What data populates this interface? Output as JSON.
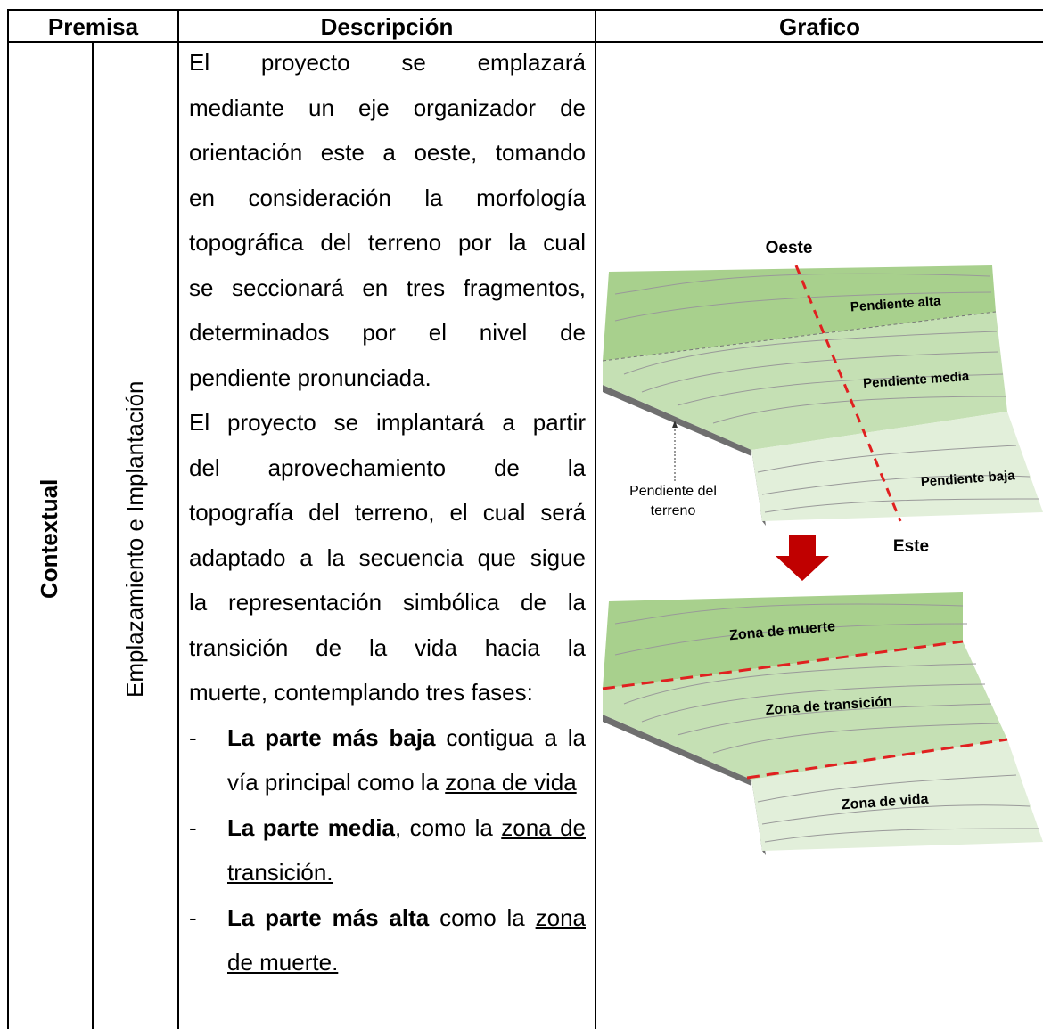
{
  "table": {
    "header": [
      "Premisa",
      "Descripción",
      "Grafico"
    ],
    "row": {
      "premise": "Contextual",
      "subpremise": "Emplazamiento e Implantación",
      "description": {
        "paragraphs": [
          [
            "El proyecto se emplazará",
            "mediante un eje organizador de",
            "orientación este a oeste, tomando",
            "en consideración la morfología",
            "topográfica del terreno por la cual",
            "se seccionará en tres fragmentos,",
            "determinados por el nivel de",
            "pendiente pronunciada."
          ],
          [
            "El proyecto se implantará a partir",
            "del aprovechamiento de la",
            "topografía del terreno, el cual será",
            "adaptado a la secuencia que sigue",
            "la representación simbólica de la",
            "transición de la vida hacia la",
            "muerte, contemplando tres fases:"
          ]
        ],
        "list_marker": "-",
        "list": [
          {
            "bold": "La parte más baja",
            "text": " contigua a la vía principal como la ",
            "underline": "zona de vida"
          },
          {
            "bold": "La parte media",
            "text": ", como la ",
            "underline": "zona de transición."
          },
          {
            "bold": "La parte más alta",
            "text": " como la ",
            "underline": "zona de muerte."
          }
        ]
      },
      "graphic": {
        "top": {
          "north": "Oeste",
          "south": "Este",
          "bands": [
            "Pendiente alta",
            "Pendiente media",
            "Pendiente baja"
          ],
          "slope_note": [
            "Pendiente del",
            "terreno"
          ]
        },
        "bottom": {
          "zones": [
            "Zona de muerte",
            "Zona de transición",
            "Zona de vida"
          ]
        }
      }
    }
  }
}
